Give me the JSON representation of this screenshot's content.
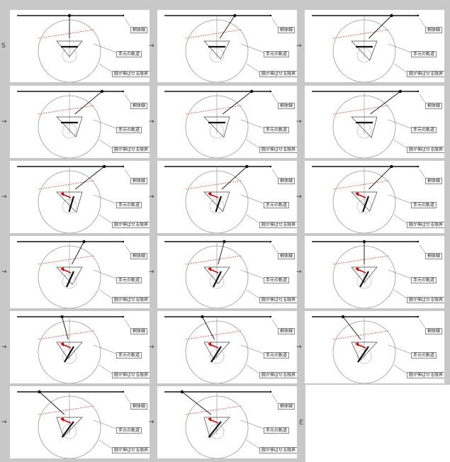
{
  "labels": {
    "bar": "桐体線",
    "hand_path": "手元の軌道",
    "arm_limit": "腕が伸ばせる限界"
  },
  "markers": {
    "start": "S",
    "end": "E",
    "arrow": "→"
  },
  "frames": [
    {
      "id": 1,
      "angle": 0,
      "red_arrow": false
    },
    {
      "id": 2,
      "angle": 25,
      "red_arrow": false
    },
    {
      "id": 3,
      "angle": 40,
      "red_arrow": false
    },
    {
      "id": 4,
      "angle": 50,
      "red_arrow": false
    },
    {
      "id": 5,
      "angle": 55,
      "red_arrow": false
    },
    {
      "id": 6,
      "angle": 58,
      "red_arrow": false
    },
    {
      "id": 7,
      "angle": 55,
      "red_arrow": true
    },
    {
      "id": 8,
      "angle": 45,
      "red_arrow": true
    },
    {
      "id": 9,
      "angle": 40,
      "red_arrow": true
    },
    {
      "id": 10,
      "angle": 20,
      "red_arrow": true
    },
    {
      "id": 11,
      "angle": 10,
      "red_arrow": true
    },
    {
      "id": 12,
      "angle": 0,
      "red_arrow": true
    },
    {
      "id": 13,
      "angle": -10,
      "red_arrow": true
    },
    {
      "id": 14,
      "angle": -20,
      "red_arrow": true
    },
    {
      "id": 15,
      "angle": -30,
      "red_arrow": true
    },
    {
      "id": 16,
      "angle": -45,
      "red_arrow": true
    },
    {
      "id": 17,
      "angle": -55,
      "red_arrow": true
    }
  ],
  "colors": {
    "background": "#c8c8c8",
    "panel": "#ffffff",
    "line": "#111111",
    "circle": "#999999",
    "dotted_red": "#dd2222",
    "arrow_red": "#e00000"
  }
}
